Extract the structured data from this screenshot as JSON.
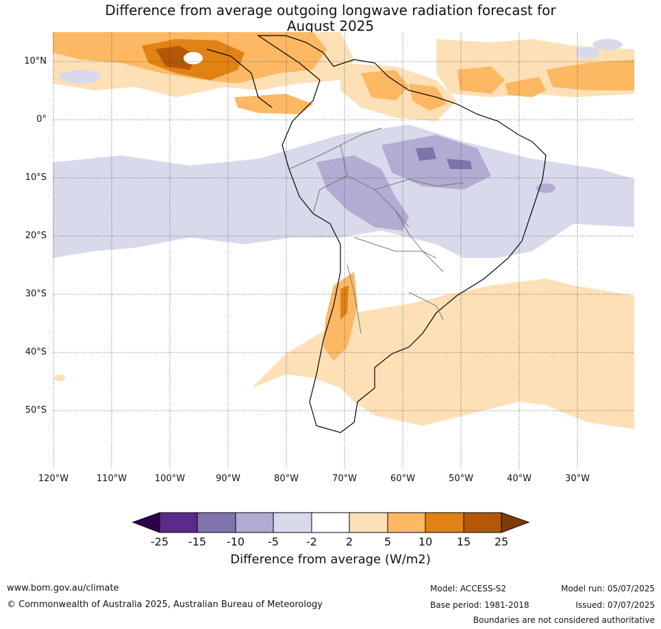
{
  "title_line1": "Difference from average outgoing longwave radiation forecast for",
  "title_line2": "August 2025",
  "lat_labels": [
    "10°N",
    "0°",
    "10°S",
    "20°S",
    "30°S",
    "40°S",
    "50°S"
  ],
  "lon_labels": [
    "120°W",
    "110°W",
    "100°W",
    "90°W",
    "80°W",
    "70°W",
    "60°W",
    "50°W",
    "40°W",
    "30°W"
  ],
  "colorbar": {
    "ticks": [
      "-25",
      "-15",
      "-10",
      "-5",
      "-2",
      "2",
      "5",
      "10",
      "15",
      "25"
    ],
    "colors": [
      "#2d004b",
      "#5c2a8a",
      "#8073ac",
      "#b2abd2",
      "#d8daeb",
      "#ffffff",
      "#fee0b6",
      "#fdb863",
      "#e08214",
      "#b35806",
      "#7f3b08"
    ],
    "label": "Difference from average (W/m2)"
  },
  "footer": {
    "website": "www.bom.gov.au/climate",
    "copyright": "© Commonwealth of Australia 2025, Australian Bureau of Meteorology",
    "model": "Model: ACCESS-S2",
    "base_period": "Base period: 1981-2018",
    "model_run": "Model run: 05/07/2025",
    "issued": "Issued: 07/07/2025",
    "disclaimer": "Boundaries are not considered authoritative"
  }
}
